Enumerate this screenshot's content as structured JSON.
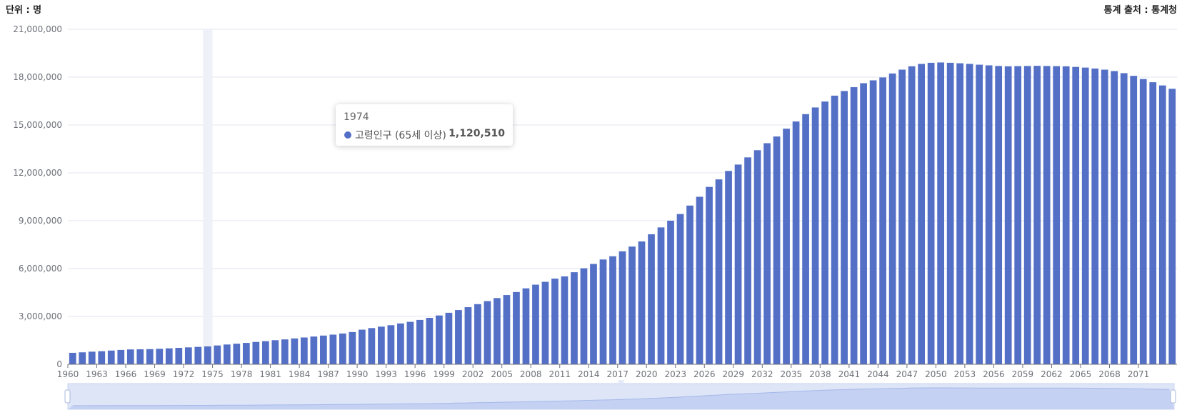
{
  "header": {
    "unit_label": "단위 : 명",
    "source_label": "통계 출처 : 통계청"
  },
  "tooltip": {
    "year": "1974",
    "series": "고령인구 (65세 이상)",
    "value": "1,120,510"
  },
  "colors": {
    "bar": "#5470c6",
    "grid": "#e0e6f1",
    "highlight": "#eef1f8",
    "zoom_fill": "#dde5f7"
  },
  "chart_data": {
    "type": "bar",
    "series_name": "고령인구 (65세 이상)",
    "ylim": [
      0,
      21000000
    ],
    "y_ticks": [
      "0",
      "3,000,000",
      "6,000,000",
      "9,000,000",
      "12,000,000",
      "15,000,000",
      "18,000,000",
      "21,000,000"
    ],
    "x_tick_labels": [
      "1960",
      "1963",
      "1966",
      "1969",
      "1972",
      "1975",
      "1978",
      "1981",
      "1984",
      "1987",
      "1990",
      "1993",
      "1996",
      "1999",
      "2002",
      "2005",
      "2008",
      "2011",
      "2014",
      "2017",
      "2020",
      "2023",
      "2026",
      "2029",
      "2032",
      "2035",
      "2038",
      "2041",
      "2044",
      "2047",
      "2050",
      "2053",
      "2056",
      "2059",
      "2062",
      "2065",
      "2068",
      "2071"
    ],
    "x_start": 1960,
    "highlighted": 1974,
    "values": [
      720000,
      750000,
      790000,
      820000,
      860000,
      900000,
      930000,
      940000,
      950000,
      970000,
      1000000,
      1030000,
      1060000,
      1090000,
      1120510,
      1180000,
      1240000,
      1290000,
      1340000,
      1400000,
      1450000,
      1510000,
      1560000,
      1620000,
      1680000,
      1740000,
      1800000,
      1860000,
      1930000,
      2020000,
      2170000,
      2270000,
      2360000,
      2450000,
      2560000,
      2660000,
      2780000,
      2910000,
      3060000,
      3230000,
      3400000,
      3580000,
      3770000,
      3960000,
      4150000,
      4340000,
      4530000,
      4760000,
      4990000,
      5170000,
      5370000,
      5510000,
      5770000,
      6020000,
      6290000,
      6570000,
      6770000,
      7080000,
      7380000,
      7700000,
      8150000,
      8580000,
      9000000,
      9420000,
      9950000,
      10500000,
      11120000,
      11590000,
      12120000,
      12520000,
      12970000,
      13420000,
      13860000,
      14280000,
      14770000,
      15220000,
      15680000,
      16100000,
      16470000,
      16840000,
      17130000,
      17370000,
      17620000,
      17800000,
      17980000,
      18230000,
      18470000,
      18680000,
      18830000,
      18900000,
      18920000,
      18900000,
      18870000,
      18830000,
      18780000,
      18740000,
      18700000,
      18680000,
      18690000,
      18700000,
      18710000,
      18700000,
      18690000,
      18680000,
      18640000,
      18600000,
      18540000,
      18470000,
      18380000,
      18250000,
      18080000,
      17880000,
      17680000,
      17480000,
      17270000
    ]
  }
}
